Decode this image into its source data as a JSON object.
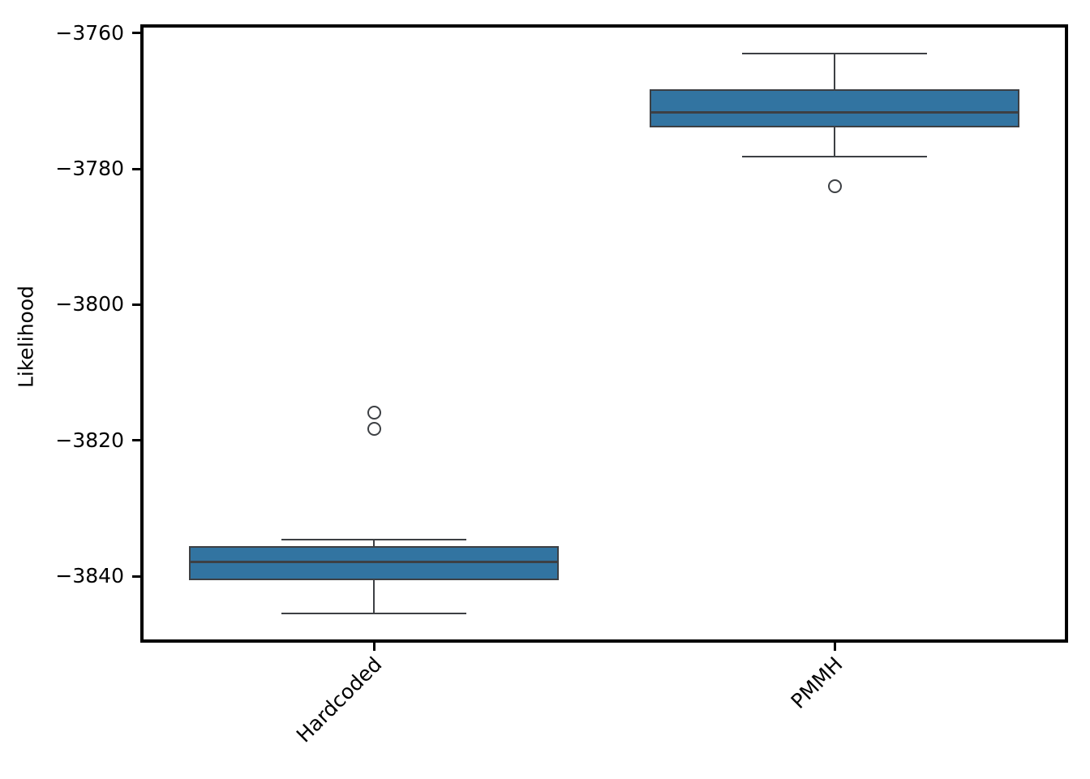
{
  "chart_data": {
    "type": "box",
    "ylabel": "Likelihood",
    "categories": [
      "Hardcoded",
      "PMMH"
    ],
    "ylim": [
      -3849.3,
      -3759.2
    ],
    "grid": false,
    "legend": null,
    "yticks": [
      {
        "value": -3760,
        "label": "−3760"
      },
      {
        "value": -3780,
        "label": "−3780"
      },
      {
        "value": -3800,
        "label": "−3800"
      },
      {
        "value": -3820,
        "label": "−3820"
      },
      {
        "value": -3840,
        "label": "−3840"
      }
    ],
    "series": [
      {
        "name": "Hardcoded",
        "whisker_low": -3845.5,
        "q1": -3840.6,
        "median": -3837.9,
        "q3": -3835.5,
        "whisker_high": -3834.6,
        "outliers": [
          -3815.9,
          -3818.3
        ]
      },
      {
        "name": "PMMH",
        "whisker_low": -3778.2,
        "q1": -3773.9,
        "median": -3771.7,
        "q3": -3768.3,
        "whisker_high": -3763.0,
        "outliers": [
          -3782.6
        ]
      }
    ],
    "colors": {
      "box_fill": "#3274a1",
      "box_edge": "#3d4044",
      "spine": "#000000",
      "text": "#000000"
    }
  }
}
